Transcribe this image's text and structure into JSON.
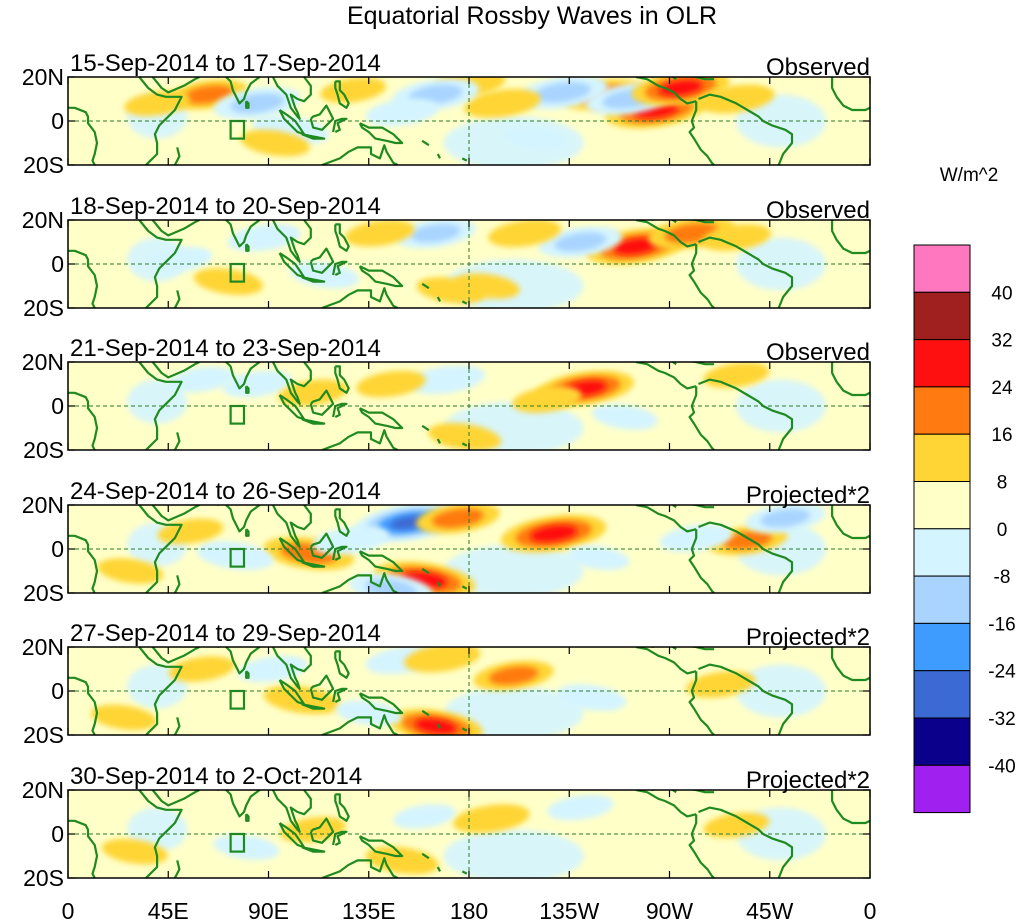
{
  "chart_data": {
    "type": "heatmap",
    "title": "Equatorial Rossby Waves in OLR",
    "colorbar": {
      "units": "W/m^2",
      "levels": [
        "40",
        "32",
        "24",
        "16",
        "8",
        "0",
        "-8",
        "-16",
        "-24",
        "-32",
        "-40"
      ],
      "colors": [
        "#ff77be",
        "#a02020",
        "#ff1010",
        "#ff7a10",
        "#ffd535",
        "#ffffc8",
        "#d4f4ff",
        "#a8d4ff",
        "#3f9cff",
        "#3c6ad4",
        "#0a008c",
        "#a020f0"
      ]
    },
    "x_axis": {
      "ticks": [
        "0",
        "45E",
        "90E",
        "135E",
        "180",
        "135W",
        "90W",
        "45W",
        "0"
      ],
      "lon_values": [
        0,
        45,
        90,
        135,
        180,
        225,
        270,
        315,
        360
      ],
      "range": [
        0,
        360
      ]
    },
    "y_axis": {
      "ticks": [
        "20N",
        "0",
        "20S"
      ],
      "lat_values": [
        20,
        0,
        -20
      ],
      "range": [
        -20,
        20
      ]
    },
    "panels": [
      {
        "date_range": "15-Sep-2014 to 17-Sep-2014",
        "kind": "Observed",
        "anomalies": [
          {
            "lon": 264,
            "lat": 5,
            "value": 28
          },
          {
            "lon": 240,
            "lat": 12,
            "value": 18
          },
          {
            "lon": 252,
            "lat": 10,
            "value": -20
          },
          {
            "lon": 275,
            "lat": 15,
            "value": 26
          },
          {
            "lon": 222,
            "lat": 13,
            "value": -22
          },
          {
            "lon": 195,
            "lat": 8,
            "value": 14
          },
          {
            "lon": 180,
            "lat": 17,
            "value": 12
          },
          {
            "lon": 63,
            "lat": 12,
            "value": 16
          },
          {
            "lon": 85,
            "lat": 8,
            "value": -20
          },
          {
            "lon": 100,
            "lat": -4,
            "value": -14
          },
          {
            "lon": 165,
            "lat": 12,
            "value": -20
          },
          {
            "lon": 150,
            "lat": 4,
            "value": -12
          },
          {
            "lon": 93,
            "lat": -10,
            "value": 10
          },
          {
            "lon": 300,
            "lat": 10,
            "value": 14
          },
          {
            "lon": 40,
            "lat": 8,
            "value": 8
          },
          {
            "lon": 128,
            "lat": 14,
            "value": 8
          },
          {
            "lon": 210,
            "lat": -8,
            "value": -6
          }
        ]
      },
      {
        "date_range": "18-Sep-2014 to 20-Sep-2014",
        "kind": "Observed",
        "anomalies": [
          {
            "lon": 255,
            "lat": 8,
            "value": 28
          },
          {
            "lon": 280,
            "lat": 14,
            "value": 20
          },
          {
            "lon": 230,
            "lat": 10,
            "value": -18
          },
          {
            "lon": 205,
            "lat": 14,
            "value": 12
          },
          {
            "lon": 165,
            "lat": 14,
            "value": -16
          },
          {
            "lon": 140,
            "lat": 14,
            "value": 10
          },
          {
            "lon": 88,
            "lat": 12,
            "value": -12
          },
          {
            "lon": 72,
            "lat": -8,
            "value": 10
          },
          {
            "lon": 115,
            "lat": -5,
            "value": -10
          },
          {
            "lon": 172,
            "lat": -12,
            "value": 10
          },
          {
            "lon": 50,
            "lat": 2,
            "value": -8
          },
          {
            "lon": 300,
            "lat": 12,
            "value": 10
          },
          {
            "lon": 188,
            "lat": -10,
            "value": 8
          }
        ]
      },
      {
        "date_range": "21-Sep-2014 to 23-Sep-2014",
        "kind": "Observed",
        "anomalies": [
          {
            "lon": 232,
            "lat": 8,
            "value": 26
          },
          {
            "lon": 215,
            "lat": 3,
            "value": 10
          },
          {
            "lon": 170,
            "lat": 12,
            "value": -14
          },
          {
            "lon": 145,
            "lat": 10,
            "value": 10
          },
          {
            "lon": 85,
            "lat": 10,
            "value": -10
          },
          {
            "lon": 178,
            "lat": -14,
            "value": 12
          },
          {
            "lon": 110,
            "lat": 6,
            "value": 10
          },
          {
            "lon": 60,
            "lat": 12,
            "value": -8
          },
          {
            "lon": 250,
            "lat": -5,
            "value": -8
          },
          {
            "lon": 300,
            "lat": 14,
            "value": 8
          }
        ]
      },
      {
        "date_range": "24-Sep-2014 to 26-Sep-2014",
        "kind": "Projected*2",
        "anomalies": [
          {
            "lon": 218,
            "lat": 7,
            "value": 30
          },
          {
            "lon": 153,
            "lat": 12,
            "value": -32
          },
          {
            "lon": 175,
            "lat": 14,
            "value": 18
          },
          {
            "lon": 160,
            "lat": -14,
            "value": 28
          },
          {
            "lon": 108,
            "lat": -2,
            "value": 22
          },
          {
            "lon": 127,
            "lat": 4,
            "value": -14
          },
          {
            "lon": 75,
            "lat": -3,
            "value": -14
          },
          {
            "lon": 145,
            "lat": -18,
            "value": -18
          },
          {
            "lon": 305,
            "lat": 4,
            "value": 16
          },
          {
            "lon": 282,
            "lat": 5,
            "value": -12
          },
          {
            "lon": 322,
            "lat": 14,
            "value": -16
          },
          {
            "lon": 55,
            "lat": 8,
            "value": 8
          },
          {
            "lon": 28,
            "lat": -10,
            "value": 8
          },
          {
            "lon": 238,
            "lat": -4,
            "value": -6
          }
        ]
      },
      {
        "date_range": "27-Sep-2014 to 29-Sep-2014",
        "kind": "Projected*2",
        "anomalies": [
          {
            "lon": 200,
            "lat": 7,
            "value": 16
          },
          {
            "lon": 150,
            "lat": 14,
            "value": -12
          },
          {
            "lon": 168,
            "lat": 15,
            "value": 14
          },
          {
            "lon": 165,
            "lat": -16,
            "value": 24
          },
          {
            "lon": 105,
            "lat": -4,
            "value": 14
          },
          {
            "lon": 92,
            "lat": 10,
            "value": -10
          },
          {
            "lon": 235,
            "lat": -3,
            "value": -10
          },
          {
            "lon": 293,
            "lat": 3,
            "value": 10
          },
          {
            "lon": 25,
            "lat": -12,
            "value": 8
          },
          {
            "lon": 60,
            "lat": 10,
            "value": 8
          },
          {
            "lon": 135,
            "lat": -10,
            "value": -8
          }
        ]
      },
      {
        "date_range": "30-Sep-2014 to 2-Oct-2014",
        "kind": "Projected*2",
        "anomalies": [
          {
            "lon": 190,
            "lat": 7,
            "value": 14
          },
          {
            "lon": 150,
            "lat": -12,
            "value": 12
          },
          {
            "lon": 230,
            "lat": 12,
            "value": -8
          },
          {
            "lon": 110,
            "lat": 2,
            "value": 8
          },
          {
            "lon": 80,
            "lat": -6,
            "value": -8
          },
          {
            "lon": 30,
            "lat": -8,
            "value": 8
          },
          {
            "lon": 300,
            "lat": 4,
            "value": 8
          },
          {
            "lon": 160,
            "lat": 8,
            "value": -6
          }
        ]
      }
    ]
  }
}
